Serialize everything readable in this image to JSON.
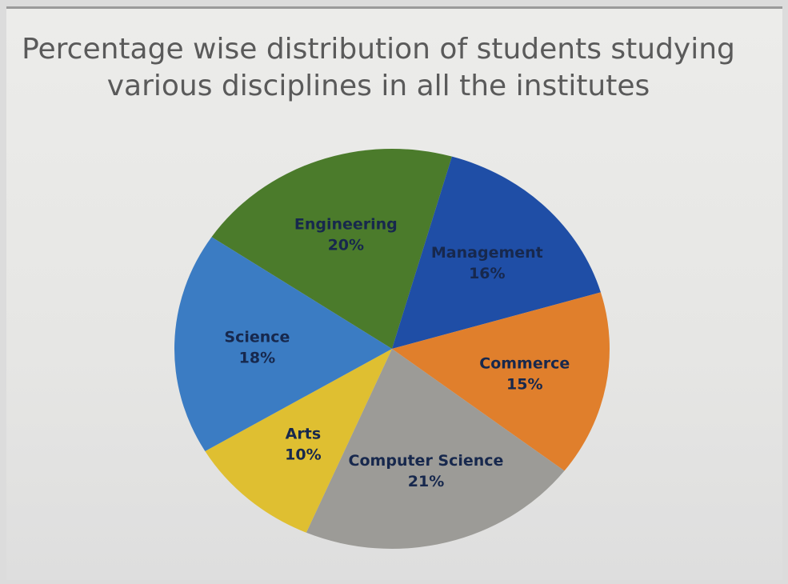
{
  "chart_data": {
    "type": "pie",
    "title": "Percentage wise distribution of students studying various disciplines in all the institutes",
    "categories": [
      "Engineering",
      "Management",
      "Commerce",
      "Computer Science",
      "Arts",
      "Science"
    ],
    "values": [
      20,
      16,
      15,
      21,
      10,
      18
    ],
    "value_labels": [
      "20%",
      "16%",
      "15%",
      "21%",
      "10%",
      "18%"
    ],
    "colors": [
      "#4b7b2b",
      "#1f4ea6",
      "#e07f2c",
      "#9c9b97",
      "#dfbf31",
      "#3b7cc3"
    ]
  }
}
